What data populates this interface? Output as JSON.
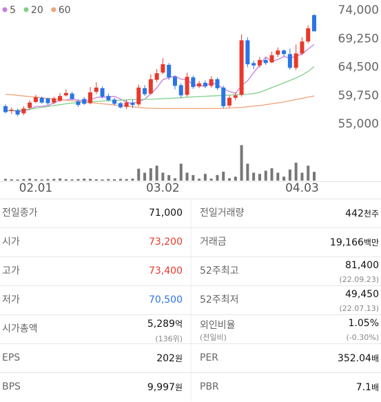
{
  "chart_data": {
    "type": "candlestick",
    "up_color": "#e8392b",
    "down_color": "#2b74e6",
    "categories": [
      null,
      null,
      null,
      null,
      null,
      "02.01",
      null,
      null,
      null,
      null,
      null,
      null,
      null,
      null,
      null,
      null,
      null,
      null,
      null,
      null,
      null,
      null,
      null,
      null,
      null,
      null,
      "03.02",
      null,
      null,
      null,
      null,
      null,
      null,
      null,
      null,
      null,
      null,
      null,
      null,
      null,
      null,
      null,
      null,
      null,
      null,
      null,
      null,
      null,
      null,
      "04.03",
      null,
      null
    ],
    "open": [
      58000,
      57200,
      57300,
      56800,
      57700,
      58700,
      59400,
      59300,
      58600,
      58900,
      59800,
      60100,
      58800,
      59200,
      58500,
      60400,
      61000,
      59700,
      59100,
      58500,
      57900,
      58600,
      58300,
      61000,
      60100,
      62400,
      63600,
      64900,
      62900,
      61500,
      59900,
      62800,
      61300,
      61900,
      61400,
      62500,
      61100,
      58100,
      59400,
      59900,
      69000,
      65200,
      64800,
      65700,
      65300,
      66600,
      67300,
      66700,
      64400,
      66800,
      68800,
      73200
    ],
    "high": [
      58300,
      57800,
      57600,
      58000,
      59000,
      59900,
      59600,
      59400,
      59600,
      60200,
      60800,
      60400,
      59100,
      59500,
      61200,
      62000,
      61300,
      60100,
      59400,
      58700,
      59000,
      59100,
      61600,
      61500,
      63300,
      64200,
      66000,
      65200,
      63100,
      61800,
      63600,
      63100,
      62200,
      62300,
      63000,
      62800,
      61400,
      59800,
      60300,
      70000,
      69500,
      65600,
      66200,
      66100,
      67100,
      67800,
      67500,
      67600,
      68300,
      69500,
      71500,
      73400
    ],
    "low": [
      56800,
      56700,
      56300,
      56500,
      57400,
      58500,
      58400,
      58200,
      58300,
      58700,
      59600,
      59000,
      57900,
      58200,
      58300,
      60000,
      59300,
      58800,
      58100,
      57600,
      57500,
      57700,
      58000,
      59700,
      59900,
      62000,
      63300,
      62400,
      60800,
      59400,
      59600,
      60900,
      61000,
      61000,
      61100,
      60700,
      57600,
      57800,
      59000,
      59600,
      64500,
      64200,
      64400,
      64900,
      65200,
      66200,
      66300,
      64100,
      64000,
      66500,
      68500,
      70500
    ],
    "close": [
      57000,
      57400,
      56600,
      57600,
      58600,
      59500,
      58600,
      58500,
      59300,
      59700,
      60200,
      59200,
      58200,
      58400,
      60300,
      61100,
      59600,
      59000,
      58400,
      57800,
      58600,
      58200,
      61100,
      60000,
      62500,
      63500,
      65000,
      62800,
      61400,
      59800,
      62900,
      61200,
      61800,
      61300,
      62500,
      61000,
      58000,
      59400,
      59800,
      69000,
      65000,
      64800,
      65700,
      65200,
      66500,
      67300,
      66700,
      64400,
      66800,
      68800,
      71000,
      70500
    ],
    "series": [
      {
        "name": "5",
        "color": "#c77ddb",
        "values": [
          57300,
          57300,
          57100,
          57200,
          57440,
          57940,
          57980,
          58100,
          58560,
          59000,
          59040,
          59200,
          59020,
          58920,
          59060,
          59440,
          59520,
          59500,
          59640,
          59180,
          58680,
          58400,
          58820,
          59140,
          60080,
          61060,
          62420,
          62760,
          63040,
          62500,
          62380,
          61620,
          61420,
          61340,
          61940,
          61560,
          60920,
          60440,
          60140,
          61440,
          62240,
          63600,
          64860,
          66220,
          65440,
          65800,
          66280,
          66020,
          66340,
          66700,
          67540,
          68300
        ]
      },
      {
        "name": "20",
        "color": "#7fd08a",
        "values": [
          57200,
          57250,
          57300,
          57400,
          57500,
          57650,
          57800,
          57950,
          58100,
          58250,
          58400,
          58500,
          58600,
          58700,
          58750,
          58800,
          58850,
          58900,
          58950,
          59000,
          59050,
          59100,
          59100,
          59150,
          59150,
          59200,
          59250,
          59300,
          59350,
          59400,
          59500,
          59550,
          59600,
          59650,
          59700,
          59750,
          59800,
          59850,
          59900,
          59950,
          60000,
          60100,
          60300,
          60700,
          61100,
          61500,
          61900,
          62300,
          62700,
          63200,
          63800,
          64600
        ]
      },
      {
        "name": "60",
        "color": "#f0a27a",
        "values": [
          60000,
          59900,
          59800,
          59700,
          59600,
          59500,
          59400,
          59300,
          59200,
          59100,
          59000,
          58900,
          58800,
          58700,
          58600,
          58500,
          58400,
          58300,
          58200,
          58100,
          58000,
          57900,
          57800,
          57700,
          57650,
          57600,
          57600,
          57600,
          57600,
          57600,
          57600,
          57600,
          57600,
          57600,
          57600,
          57600,
          57650,
          57700,
          57750,
          57800,
          57900,
          58000,
          58100,
          58250,
          58400,
          58550,
          58700,
          58900,
          59100,
          59300,
          59500,
          59700
        ]
      }
    ],
    "ylim": [
      55000,
      74000
    ],
    "yticks": [
      {
        "value": 74000,
        "label": "74,000"
      },
      {
        "value": 69250,
        "label": "69,250"
      },
      {
        "value": 64500,
        "label": "64,500"
      },
      {
        "value": 59750,
        "label": "59,750"
      },
      {
        "value": 55000,
        "label": "55,000"
      }
    ],
    "volume": {
      "color": "#777777",
      "lim": [
        0,
        1900
      ],
      "values": [
        90,
        70,
        60,
        80,
        100,
        70,
        60,
        80,
        90,
        110,
        70,
        60,
        80,
        100,
        90,
        70,
        60,
        80,
        70,
        90,
        80,
        100,
        600,
        400,
        620,
        750,
        400,
        280,
        120,
        850,
        400,
        280,
        100,
        340,
        100,
        280,
        450,
        120,
        200,
        1780,
        850,
        400,
        340,
        500,
        620,
        400,
        200,
        560,
        900,
        400,
        750,
        442
      ]
    }
  },
  "table": {
    "rows": [
      [
        {
          "label": "전일종가",
          "value": "71,000"
        },
        {
          "label": "전일거래량",
          "value": "442",
          "unit": "천주"
        }
      ],
      [
        {
          "label": "시가",
          "value": "73,200",
          "color": "#e8392b"
        },
        {
          "label": "거래금",
          "value": "19,166",
          "unit": "백만"
        }
      ],
      [
        {
          "label": "고가",
          "value": "73,400",
          "color": "#e8392b"
        },
        {
          "label": "52주최고",
          "value": "81,400",
          "sub": "(22.09.23)"
        }
      ],
      [
        {
          "label": "저가",
          "value": "70,500",
          "color": "#2b74e6"
        },
        {
          "label": "52주최저",
          "value": "49,450",
          "sub": "(22.07.13)"
        }
      ],
      [
        {
          "label": "시가총액",
          "value": "5,289",
          "unit": "억",
          "sub": "(136위)"
        },
        {
          "label": "외인비율",
          "label_sub": "(전일비)",
          "value": "1.05%",
          "sub": "(-0.30%)"
        }
      ],
      [
        {
          "label": "EPS",
          "value": "202",
          "unit": "원"
        },
        {
          "label": "PER",
          "value": "352.04",
          "unit": "배"
        }
      ],
      [
        {
          "label": "BPS",
          "value": "9,997",
          "unit": "원"
        },
        {
          "label": "PBR",
          "value": "7.1",
          "unit": "배"
        }
      ]
    ]
  }
}
